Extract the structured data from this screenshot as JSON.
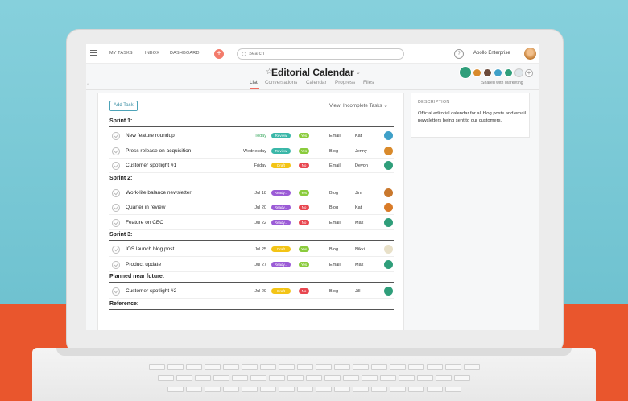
{
  "topbar": {
    "nav": [
      "MY TASKS",
      "INBOX",
      "DASHBOARD"
    ],
    "search_placeholder": "Search",
    "help": "?",
    "org": "Apollo Enterprise"
  },
  "project": {
    "title": "Editorial Calendar",
    "tabs": [
      "List",
      "Conversations",
      "Calendar",
      "Progress",
      "Files"
    ],
    "shared_text": "Shared with Marketing"
  },
  "toolbar": {
    "add_task": "Add Task",
    "view": "View: Incomplete Tasks"
  },
  "colors": {
    "review": "#3ab7a8",
    "draft": "#f3c416",
    "ready": "#9b5bd6",
    "yes": "#8acb3c",
    "no": "#e8464f"
  },
  "sections": [
    {
      "title": "Sprint 1:",
      "tasks": [
        {
          "name": "New feature roundup",
          "due": "Today",
          "status": "Review",
          "status_type": "review",
          "approved": "Yes",
          "channel": "Email",
          "owner": "Kat",
          "avatar": "#3fa0c8"
        },
        {
          "name": "Press release on acquisition",
          "due": "Wednesday",
          "status": "Review",
          "status_type": "review",
          "approved": "Yes",
          "channel": "Blog",
          "owner": "Jenny",
          "avatar": "#d98a2b"
        },
        {
          "name": "Customer spotlight #1",
          "due": "Friday",
          "status": "Draft",
          "status_type": "draft",
          "approved": "No",
          "channel": "Email",
          "owner": "Devon",
          "avatar": "#2f9e7a"
        }
      ]
    },
    {
      "title": "Sprint 2:",
      "tasks": [
        {
          "name": "Work-life balance newsletter",
          "due": "Jul 18",
          "status": "Ready...",
          "status_type": "ready",
          "approved": "Yes",
          "channel": "Blog",
          "owner": "Jim",
          "avatar": "#c9782d"
        },
        {
          "name": "Quarter in review",
          "due": "Jul 20",
          "status": "Ready...",
          "status_type": "ready",
          "approved": "No",
          "channel": "Blog",
          "owner": "Kat",
          "avatar": "#d97b28"
        },
        {
          "name": "Feature on CEO",
          "due": "Jul 22",
          "status": "Ready...",
          "status_type": "ready",
          "approved": "No",
          "channel": "Email",
          "owner": "Max",
          "avatar": "#2f9e7a"
        }
      ]
    },
    {
      "title": "Sprint 3:",
      "tasks": [
        {
          "name": "IOS launch blog post",
          "due": "Jul 25",
          "status": "Draft",
          "status_type": "draft",
          "approved": "Yes",
          "channel": "Blog",
          "owner": "Nikki",
          "avatar": "#e8e0c8"
        },
        {
          "name": "Product update",
          "due": "Jul 27",
          "status": "Ready...",
          "status_type": "ready",
          "approved": "Yes",
          "channel": "Email",
          "owner": "Max",
          "avatar": "#2f9e7a"
        }
      ]
    },
    {
      "title": "Planned near future:",
      "tasks": [
        {
          "name": "Customer spotlight #2",
          "due": "Jul 29",
          "status": "Draft",
          "status_type": "draft",
          "approved": "No",
          "channel": "Blog",
          "owner": "Jill",
          "avatar": "#2f9e7a"
        }
      ]
    },
    {
      "title": "Reference:",
      "tasks": []
    }
  ],
  "description": {
    "label": "DESCRIPTION",
    "text": "Official editorial calendar for all blog posts and email newsletters being sent to our customers."
  }
}
